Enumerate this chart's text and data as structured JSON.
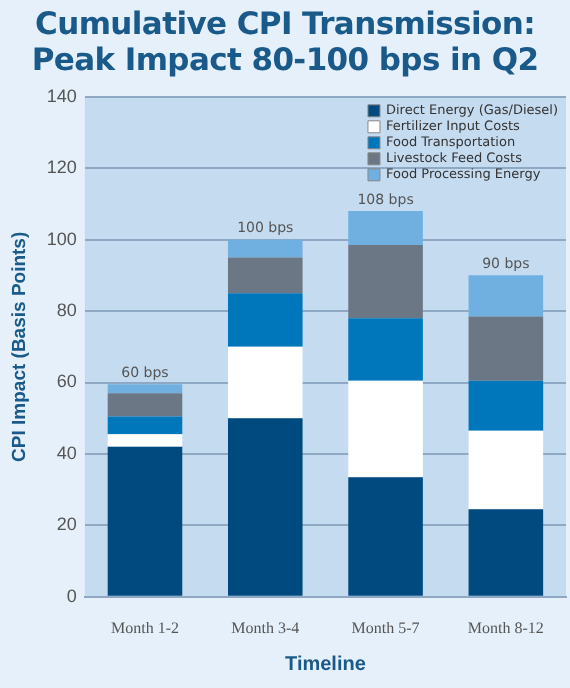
{
  "chart_data": {
    "type": "bar",
    "stacked": true,
    "title": "Cumulative CPI Transmission:\nPeak Impact 80-100 bps in Q2",
    "xlabel": "Timeline",
    "ylabel": "CPI Impact (Basis Points)",
    "categories": [
      "Month 1-2",
      "Month 3-4",
      "Month 5-7",
      "Month 8-12"
    ],
    "series": [
      {
        "name": "Direct Energy (Gas/Diesel)",
        "color": "#004a80",
        "values": [
          42,
          50,
          33.5,
          24.5
        ]
      },
      {
        "name": "Fertilizer Input Costs",
        "color": "#ffffff",
        "values": [
          3.5,
          20,
          27,
          22
        ]
      },
      {
        "name": "Food Transportation",
        "color": "#0077bb",
        "values": [
          5,
          15,
          17.5,
          14
        ]
      },
      {
        "name": "Livestock Feed Costs",
        "color": "#6b7785",
        "values": [
          6.5,
          10,
          20.5,
          18
        ]
      },
      {
        "name": "Food Processing Energy",
        "color": "#6fb0e0",
        "values": [
          2.5,
          5,
          9.5,
          11.5
        ]
      }
    ],
    "totals": [
      "60 bps",
      "100 bps",
      "108 bps",
      "90 bps"
    ],
    "ylim": [
      0,
      140
    ],
    "yticks": [
      0,
      20,
      40,
      60,
      80,
      100,
      120,
      140
    ],
    "grid": "y",
    "legend": "top right"
  }
}
